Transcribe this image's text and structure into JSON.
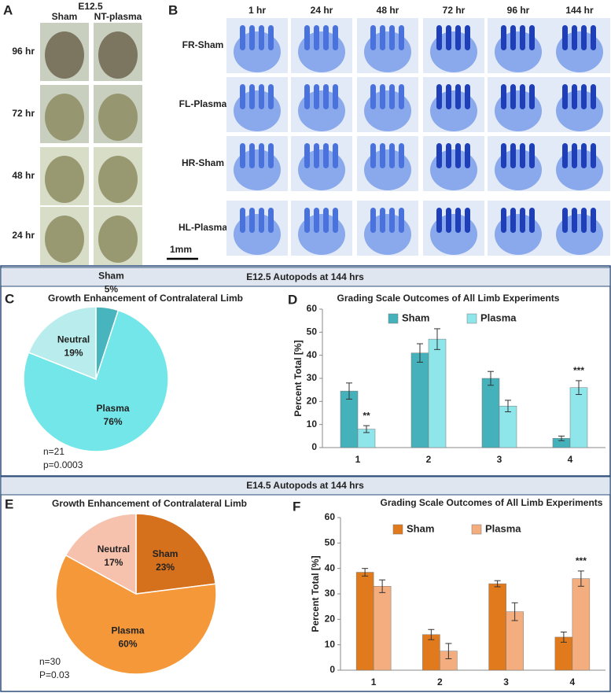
{
  "panel_a": {
    "letter": "A",
    "stage": "E12.5",
    "columns": [
      "Sham",
      "NT-plasma"
    ],
    "rows": [
      "96 hr",
      "72 hr",
      "48 hr",
      "24 hr"
    ],
    "scale_bar": "1mm"
  },
  "panel_b": {
    "letter": "B",
    "columns": [
      "1 hr",
      "24 hr",
      "48 hr",
      "72 hr",
      "96 hr",
      "144 hr"
    ],
    "rows": [
      "FR-Sham",
      "FL-Plasma",
      "HR-Sham",
      "HL-Plasma"
    ]
  },
  "sections": [
    "E12.5 Autopods at 144 hrs",
    "E14.5 Autopods at 144 hrs"
  ],
  "chart_data": [
    {
      "type": "pie",
      "panel_label": "C",
      "title": "Growth Enhancement of Contralateral Limb",
      "categories": [
        "Sham",
        "Plasma",
        "Neutral"
      ],
      "values": [
        5,
        76,
        19
      ],
      "value_labels": [
        "5%",
        "76%",
        "19%"
      ],
      "colors": [
        "#48b4bd",
        "#72e6e8",
        "#b9ecec"
      ],
      "notes": [
        "n=21",
        "p=0.0003"
      ]
    },
    {
      "type": "bar",
      "panel_label": "D",
      "title": "Grading Scale Outcomes of All Limb Experiments",
      "ylabel": "Percent Total [%]",
      "categories": [
        "1",
        "2",
        "3",
        "4"
      ],
      "series": [
        {
          "name": "Sham",
          "color": "#45b1bb",
          "values": [
            24.5,
            41,
            30,
            4
          ],
          "errors": [
            3.5,
            4,
            3,
            1
          ],
          "markers": [
            null,
            null,
            null,
            null
          ]
        },
        {
          "name": "Plasma",
          "color": "#8ee6ea",
          "values": [
            8,
            47,
            18,
            26
          ],
          "errors": [
            1.5,
            4.5,
            2.5,
            3
          ],
          "markers": [
            "**",
            null,
            null,
            "***"
          ]
        }
      ],
      "ylim": [
        0,
        60
      ],
      "yticks": [
        0,
        10,
        20,
        30,
        40,
        50,
        60
      ]
    },
    {
      "type": "pie",
      "panel_label": "E",
      "title": "Growth Enhancement of Contralateral Limb",
      "categories": [
        "Sham",
        "Plasma",
        "Neutral"
      ],
      "values": [
        23,
        60,
        17
      ],
      "value_labels": [
        "23%",
        "60%",
        "17%"
      ],
      "colors": [
        "#d5701c",
        "#f5983a",
        "#f6c1ad"
      ],
      "notes": [
        "n=30",
        "P=0.03"
      ]
    },
    {
      "type": "bar",
      "panel_label": "F",
      "title": "Grading Scale Outcomes of All Limb Experiments",
      "ylabel": "Percent Total [%]",
      "categories": [
        "1",
        "2",
        "3",
        "4"
      ],
      "series": [
        {
          "name": "Sham",
          "color": "#e07a1c",
          "values": [
            38.5,
            14,
            34,
            13
          ],
          "errors": [
            1.5,
            2,
            1.2,
            2
          ],
          "markers": [
            null,
            null,
            null,
            null
          ]
        },
        {
          "name": "Plasma",
          "color": "#f4ad7e",
          "values": [
            33,
            7.5,
            23,
            36
          ],
          "errors": [
            2.5,
            3,
            3.5,
            3
          ],
          "markers": [
            null,
            null,
            null,
            "***"
          ]
        }
      ],
      "ylim": [
        0,
        60
      ],
      "yticks": [
        0,
        10,
        20,
        30,
        40,
        50,
        60
      ]
    }
  ]
}
